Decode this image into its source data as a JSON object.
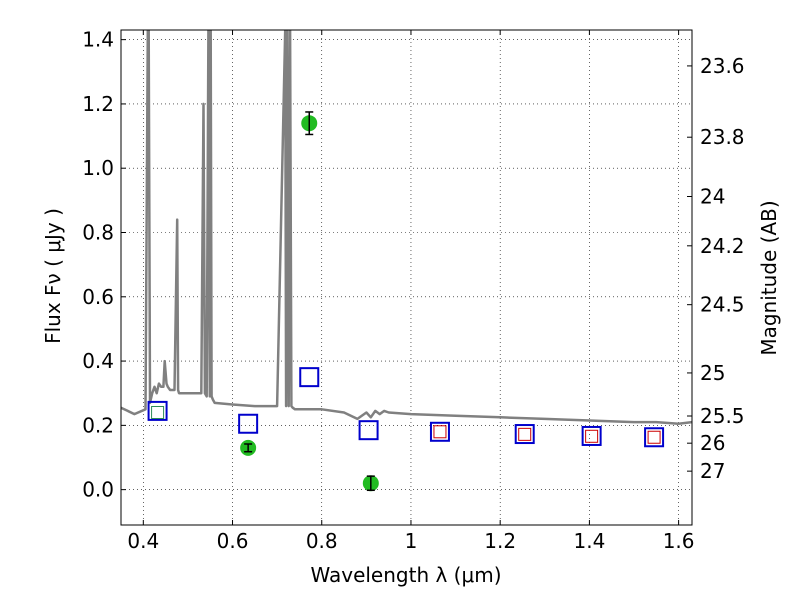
{
  "chart_data": {
    "type": "scatter",
    "xlabel": "Wavelength  λ (μm)",
    "ylabel": "Flux  Fν  ( μJy )",
    "y2label": "Magnitude (AB)",
    "xlim": [
      0.35,
      1.63
    ],
    "ylim": [
      -0.11,
      1.43
    ],
    "grid": true,
    "x_ticks": [
      {
        "value": 0.4,
        "label": "0.4"
      },
      {
        "value": 0.6,
        "label": "0.6"
      },
      {
        "value": 0.8,
        "label": "0.8"
      },
      {
        "value": 1.0,
        "label": "1"
      },
      {
        "value": 1.2,
        "label": "1.2"
      },
      {
        "value": 1.4,
        "label": "1.4"
      },
      {
        "value": 1.6,
        "label": "1.6"
      }
    ],
    "y_ticks": [
      {
        "value": 0.0,
        "label": "0.0"
      },
      {
        "value": 0.2,
        "label": "0.2"
      },
      {
        "value": 0.4,
        "label": "0.4"
      },
      {
        "value": 0.6,
        "label": "0.6"
      },
      {
        "value": 0.8,
        "label": "0.8"
      },
      {
        "value": 1.0,
        "label": "1.0"
      },
      {
        "value": 1.2,
        "label": "1.2"
      },
      {
        "value": 1.4,
        "label": "1.4"
      }
    ],
    "y2_ticks": [
      {
        "value": 23.6,
        "label": "23.6"
      },
      {
        "value": 23.8,
        "label": "23.8"
      },
      {
        "value": 24.0,
        "label": "24"
      },
      {
        "value": 24.2,
        "label": "24.2"
      },
      {
        "value": 24.5,
        "label": "24.5"
      },
      {
        "value": 25.0,
        "label": "25"
      },
      {
        "value": 25.5,
        "label": "25.5"
      },
      {
        "value": 26.0,
        "label": "26"
      },
      {
        "value": 27.0,
        "label": "27"
      }
    ],
    "series": [
      {
        "kind": "line",
        "color": "#808080",
        "x": [
          0.35,
          0.38,
          0.405,
          0.41,
          0.412,
          0.415,
          0.42,
          0.425,
          0.43,
          0.435,
          0.44,
          0.445,
          0.448,
          0.452,
          0.455,
          0.46,
          0.47,
          0.476,
          0.478,
          0.48,
          0.5,
          0.52,
          0.53,
          0.535,
          0.538,
          0.542,
          0.546,
          0.549,
          0.551,
          0.553,
          0.556,
          0.56,
          0.6,
          0.65,
          0.7,
          0.718,
          0.72,
          0.723,
          0.726,
          0.729,
          0.732,
          0.735,
          0.74,
          0.8,
          0.85,
          0.88,
          0.9,
          0.91,
          0.92,
          0.93,
          0.94,
          0.95,
          1.0,
          1.1,
          1.2,
          1.3,
          1.4,
          1.5,
          1.55,
          1.6,
          1.63
        ],
        "y": [
          0.255,
          0.235,
          0.25,
          1.43,
          1.43,
          0.27,
          0.3,
          0.32,
          0.3,
          0.33,
          0.32,
          0.32,
          0.4,
          0.33,
          0.32,
          0.31,
          0.31,
          0.84,
          0.31,
          0.3,
          0.3,
          0.3,
          0.3,
          1.2,
          0.3,
          0.29,
          1.43,
          0.29,
          1.43,
          0.29,
          0.28,
          0.27,
          0.265,
          0.26,
          0.26,
          1.43,
          0.26,
          1.43,
          0.26,
          1.43,
          0.26,
          0.255,
          0.25,
          0.25,
          0.24,
          0.22,
          0.24,
          0.225,
          0.245,
          0.235,
          0.245,
          0.24,
          0.235,
          0.23,
          0.225,
          0.22,
          0.215,
          0.21,
          0.21,
          0.205,
          0.21
        ]
      },
      {
        "kind": "squares",
        "color": "#0000cc",
        "x": [
          0.432,
          0.635,
          0.772,
          0.905,
          1.065,
          1.255,
          1.405,
          1.545
        ],
        "y": [
          0.245,
          0.205,
          0.35,
          0.185,
          0.18,
          0.173,
          0.167,
          0.163
        ]
      },
      {
        "kind": "squares-small",
        "color": "#cc0000",
        "x": [
          1.065,
          1.255,
          1.405,
          1.545
        ],
        "y": [
          0.18,
          0.172,
          0.166,
          0.163
        ]
      },
      {
        "kind": "square-small-green",
        "color": "#2e8b57",
        "x": [
          0.432
        ],
        "y": [
          0.24
        ]
      },
      {
        "kind": "points",
        "color": "#22bb22",
        "x": [
          0.635,
          0.772,
          0.91
        ],
        "y": [
          0.13,
          1.14,
          0.02
        ],
        "err": [
          0.012,
          0.035,
          0.022
        ]
      }
    ]
  }
}
